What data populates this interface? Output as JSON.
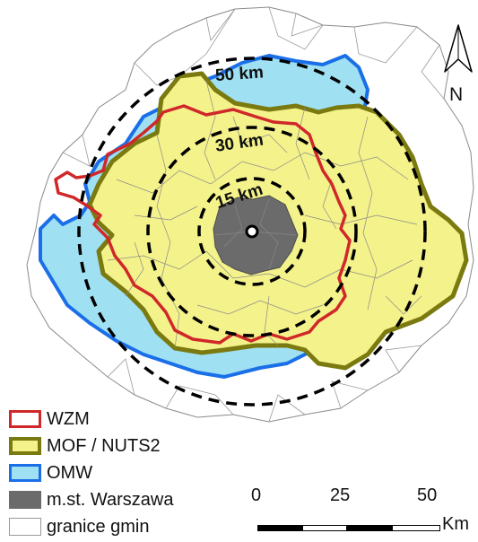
{
  "rings": {
    "r50": "50 km",
    "r30": "30 km",
    "r15": "15 km"
  },
  "north_arrow": {
    "label": "N"
  },
  "legend": {
    "items": [
      {
        "label": "WZM",
        "fill": "#ffffff",
        "border": "#d0282a",
        "icon": "red-outline"
      },
      {
        "label": "MOF / NUTS2",
        "fill": "#f4f28a",
        "border": "#7a7a10",
        "icon": "olive-outline-yellow-fill"
      },
      {
        "label": "OMW",
        "fill": "#9fe0f2",
        "border": "#1a6fe8",
        "icon": "blue-outline-cyan-fill"
      },
      {
        "label": "m.st. Warszawa",
        "fill": "#6b6b6b",
        "border": "#6b6b6b",
        "icon": "dark-gray-fill"
      },
      {
        "label": "granice gmin",
        "fill": "#ffffff",
        "border": "#9a9a9a",
        "icon": "thin-gray-outline"
      }
    ]
  },
  "scale": {
    "ticks": [
      "0",
      "25",
      "50"
    ],
    "unit": "Km"
  },
  "colors": {
    "mof_fill": "#f4f28a",
    "mof_border": "#7a7a10",
    "omw_fill": "#9fe0f2",
    "omw_border": "#1a6fe8",
    "wzm_border": "#d0282a",
    "warsaw_fill": "#6b6b6b",
    "gmina_lines": "#8a8a8a"
  }
}
